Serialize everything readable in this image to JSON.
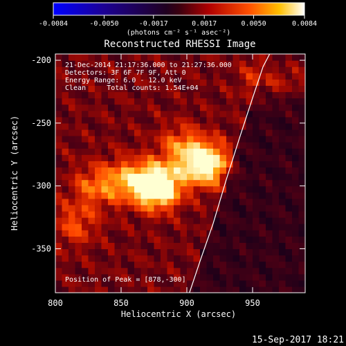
{
  "colorbar": {
    "ticks": [
      "-0.0084",
      "-0.0050",
      "-0.0017",
      "0.0017",
      "0.0050",
      "0.0084"
    ],
    "tick_values": [
      -0.0084,
      -0.005,
      -0.0017,
      0.0017,
      0.005,
      0.0084
    ],
    "range": [
      -0.0084,
      0.0084
    ],
    "unit_label": "(photons cm⁻² s⁻¹ asec⁻²)"
  },
  "chart_data": {
    "type": "heatmap",
    "title": "Reconstructed RHESSI Image",
    "xlabel": "Heliocentric X (arcsec)",
    "ylabel": "Heliocentric Y (arcsec)",
    "xlim": [
      800,
      990
    ],
    "ylim": [
      -385,
      -195
    ],
    "x_ticks": [
      800,
      850,
      900,
      950
    ],
    "y_ticks": [
      -200,
      -250,
      -300,
      -350
    ],
    "colormap": "rhessi-hot",
    "annotations": [
      "21-Dec-2014 21:17:36.000 to 21:27:36.000",
      "Detectors: 3F 6F 7F 9F, Att 0",
      "Energy Range: 6.0 - 12.0 keV",
      "Clean     Total counts: 1.54E+04"
    ],
    "peak_label": "Position of Peak = [878,-300]",
    "peak": [
      878,
      -300
    ],
    "sources": [
      {
        "x": 878,
        "y": -300,
        "intensity": 1.0
      },
      {
        "x": 914,
        "y": -282,
        "intensity": 0.85
      },
      {
        "x": 855,
        "y": -295,
        "intensity": 0.45
      },
      {
        "x": 830,
        "y": -300,
        "intensity": 0.35
      },
      {
        "x": 815,
        "y": -330,
        "intensity": 0.3
      },
      {
        "x": 895,
        "y": -268,
        "intensity": 0.35
      },
      {
        "x": 960,
        "y": -215,
        "intensity": 0.3
      },
      {
        "x": 985,
        "y": -213,
        "intensity": 0.25
      }
    ],
    "limb_curve": {
      "x": [
        902,
        910,
        920,
        930,
        940,
        950,
        958,
        963
      ],
      "y": [
        -385,
        -360,
        -330,
        -295,
        -262,
        -230,
        -205,
        -195
      ]
    }
  },
  "footer": {
    "date": "15-Sep-2017 18:21"
  }
}
